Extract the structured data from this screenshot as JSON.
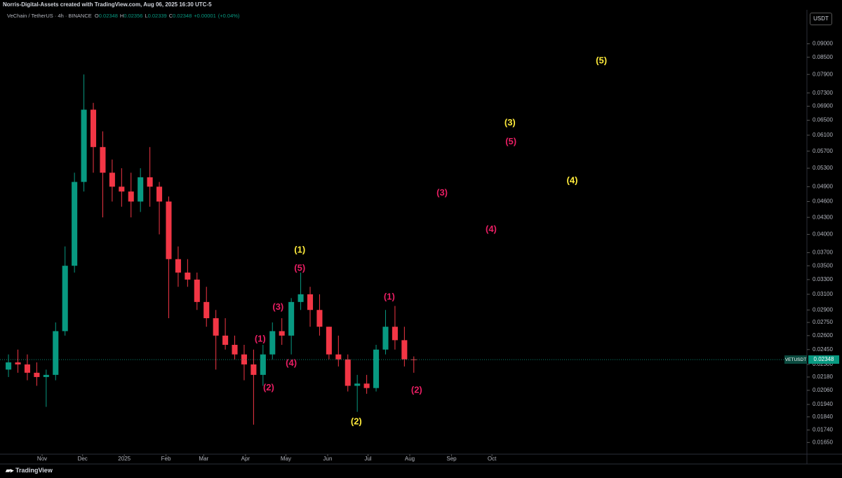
{
  "header": {
    "text": "Norris-Digital-Assets created with TradingView.com, Aug 06, 2025 16:30 UTC-5"
  },
  "legend": {
    "symbol": "VeChain / TetherUS · 4h · BINANCE",
    "open_label": "O",
    "open": 0.02348,
    "high_label": "H",
    "high": 0.02356,
    "low_label": "L",
    "low": 0.02339,
    "close_label": "C",
    "close": 0.02348,
    "change": {
      "value": 1e-05,
      "label": "+0.00001"
    },
    "change_pct": {
      "value": 0.04,
      "label": "(+0.04%)"
    }
  },
  "currency": "USDT",
  "footer": {
    "brand": "TradingView"
  },
  "chart_data": {
    "type": "candlestick",
    "log_scale": true,
    "up_color": "#089981",
    "down_color": "#f23645",
    "open": [
      0.0225,
      0.0232,
      0.023,
      0.0222,
      0.0218,
      0.022,
      0.0265,
      0.035,
      0.05,
      0.068,
      0.058,
      0.052,
      0.049,
      0.048,
      0.046,
      0.051,
      0.049,
      0.046,
      0.036,
      0.034,
      0.033,
      0.03,
      0.028,
      0.026,
      0.025,
      0.024,
      0.023,
      0.022,
      0.024,
      0.0265,
      0.026,
      0.03,
      0.031,
      0.029,
      0.027,
      0.024,
      0.0235,
      0.021,
      0.0212,
      0.0208,
      0.0245,
      0.027,
      0.0255,
      0.0235
    ],
    "high": [
      0.024,
      0.0245,
      0.024,
      0.0232,
      0.0225,
      0.0275,
      0.038,
      0.052,
      0.079,
      0.07,
      0.062,
      0.055,
      0.053,
      0.052,
      0.053,
      0.058,
      0.05,
      0.047,
      0.038,
      0.036,
      0.034,
      0.032,
      0.029,
      0.028,
      0.026,
      0.025,
      0.0245,
      0.025,
      0.0275,
      0.028,
      0.0305,
      0.034,
      0.032,
      0.031,
      0.027,
      0.026,
      0.024,
      0.022,
      0.022,
      0.025,
      0.029,
      0.0295,
      0.027,
      0.0238
    ],
    "low": [
      0.0218,
      0.0222,
      0.0215,
      0.021,
      0.0192,
      0.0215,
      0.026,
      0.034,
      0.048,
      0.052,
      0.043,
      0.046,
      0.045,
      0.043,
      0.044,
      0.045,
      0.04,
      0.028,
      0.032,
      0.032,
      0.029,
      0.027,
      0.0225,
      0.0245,
      0.0235,
      0.0215,
      0.0178,
      0.021,
      0.0235,
      0.025,
      0.024,
      0.029,
      0.027,
      0.026,
      0.0235,
      0.0228,
      0.0205,
      0.0188,
      0.0203,
      0.0205,
      0.024,
      0.0245,
      0.0228,
      0.0222
    ],
    "close": [
      0.0232,
      0.023,
      0.0222,
      0.0218,
      0.022,
      0.0265,
      0.035,
      0.05,
      0.068,
      0.058,
      0.052,
      0.049,
      0.048,
      0.046,
      0.051,
      0.049,
      0.046,
      0.036,
      0.034,
      0.033,
      0.03,
      0.028,
      0.026,
      0.025,
      0.024,
      0.023,
      0.022,
      0.024,
      0.0265,
      0.026,
      0.03,
      0.031,
      0.029,
      0.027,
      0.024,
      0.0235,
      0.021,
      0.0212,
      0.0208,
      0.0245,
      0.027,
      0.0255,
      0.0235,
      0.02348
    ],
    "xlim": [
      -0.9,
      84.7
    ],
    "xticks": [
      {
        "value": 3.57,
        "label": "Nov"
      },
      {
        "value": 7.86,
        "label": "Dec"
      },
      {
        "value": 12.29,
        "label": "2025"
      },
      {
        "value": 16.71,
        "label": "Feb"
      },
      {
        "value": 20.71,
        "label": "Mar"
      },
      {
        "value": 25.14,
        "label": "Apr"
      },
      {
        "value": 29.43,
        "label": "May"
      },
      {
        "value": 33.86,
        "label": "Jun"
      },
      {
        "value": 38.14,
        "label": "Jul"
      },
      {
        "value": 42.57,
        "label": "Aug"
      },
      {
        "value": 47,
        "label": "Sep"
      },
      {
        "value": 51.29,
        "label": "Oct"
      }
    ],
    "ylim": [
      0.0157,
      0.104
    ],
    "yticks": [
      {
        "value": 0.09,
        "label": "0.09000"
      },
      {
        "value": 0.085,
        "label": "0.08500"
      },
      {
        "value": 0.079,
        "label": "0.07900"
      },
      {
        "value": 0.073,
        "label": "0.07300"
      },
      {
        "value": 0.069,
        "label": "0.06900"
      },
      {
        "value": 0.065,
        "label": "0.06500"
      },
      {
        "value": 0.061,
        "label": "0.06100"
      },
      {
        "value": 0.057,
        "label": "0.05700"
      },
      {
        "value": 0.053,
        "label": "0.05300"
      },
      {
        "value": 0.049,
        "label": "0.04900"
      },
      {
        "value": 0.046,
        "label": "0.04600"
      },
      {
        "value": 0.043,
        "label": "0.04300"
      },
      {
        "value": 0.04,
        "label": "0.04000"
      },
      {
        "value": 0.037,
        "label": "0.03700"
      },
      {
        "value": 0.035,
        "label": "0.03500"
      },
      {
        "value": 0.033,
        "label": "0.03300"
      },
      {
        "value": 0.031,
        "label": "0.03100"
      },
      {
        "value": 0.029,
        "label": "0.02900"
      },
      {
        "value": 0.0275,
        "label": "0.02750"
      },
      {
        "value": 0.026,
        "label": "0.02600"
      },
      {
        "value": 0.0245,
        "label": "0.02450"
      },
      {
        "value": 0.023,
        "label": "0.02300"
      },
      {
        "value": 0.0218,
        "label": "0.02180"
      },
      {
        "value": 0.0206,
        "label": "0.02060"
      },
      {
        "value": 0.0194,
        "label": "0.01940"
      },
      {
        "value": 0.0184,
        "label": "0.01840"
      },
      {
        "value": 0.0174,
        "label": "0.01740"
      },
      {
        "value": 0.0165,
        "label": "0.01650"
      }
    ],
    "last_price": {
      "symbol": "VETUSDT",
      "value": 0.02348,
      "color": "#089981"
    },
    "annotations": [
      {
        "text": "(5)",
        "color": "#ffeb3b",
        "x": 62.9,
        "y": 0.0837
      },
      {
        "text": "(3)",
        "color": "#ffeb3b",
        "x": 53.2,
        "y": 0.0642
      },
      {
        "text": "(4)",
        "color": "#ffeb3b",
        "x": 59.8,
        "y": 0.0502
      },
      {
        "text": "(1)",
        "color": "#ffeb3b",
        "x": 30.9,
        "y": 0.0374
      },
      {
        "text": "(2)",
        "color": "#ffeb3b",
        "x": 36.9,
        "y": 0.018
      },
      {
        "text": "(5)",
        "color": "#e91e63",
        "x": 53.3,
        "y": 0.0593
      },
      {
        "text": "(3)",
        "color": "#e91e63",
        "x": 46.0,
        "y": 0.0477
      },
      {
        "text": "(4)",
        "color": "#e91e63",
        "x": 51.2,
        "y": 0.0408
      },
      {
        "text": "(5)",
        "color": "#e91e63",
        "x": 30.9,
        "y": 0.0346
      },
      {
        "text": "(3)",
        "color": "#e91e63",
        "x": 28.6,
        "y": 0.0293
      },
      {
        "text": "(1)",
        "color": "#e91e63",
        "x": 26.7,
        "y": 0.0256
      },
      {
        "text": "(4)",
        "color": "#e91e63",
        "x": 30.0,
        "y": 0.0231
      },
      {
        "text": "(2)",
        "color": "#e91e63",
        "x": 27.6,
        "y": 0.0208
      },
      {
        "text": "(1)",
        "color": "#e91e63",
        "x": 40.4,
        "y": 0.0306
      },
      {
        "text": "(2)",
        "color": "#e91e63",
        "x": 43.3,
        "y": 0.0206
      }
    ]
  }
}
